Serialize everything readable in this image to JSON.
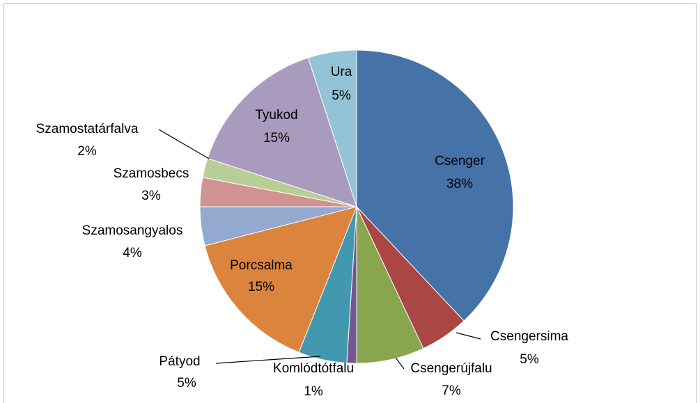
{
  "chart_data": {
    "type": "pie",
    "categories": [
      "Csenger",
      "Csengersima",
      "Csengerújfalu",
      "Komlódtótfalu",
      "Pátyod",
      "Porcsalma",
      "Szamosangyalos",
      "Szamosbecs",
      "Szamostatárfalva",
      "Tyukod",
      "Ura"
    ],
    "values": [
      38,
      5,
      7,
      1,
      5,
      15,
      4,
      3,
      2,
      15,
      5
    ],
    "value_labels": [
      "38%",
      "5%",
      "7%",
      "1%",
      "5%",
      "15%",
      "4%",
      "3%",
      "2%",
      "15%",
      "5%"
    ],
    "colors": [
      "#4572a7",
      "#aa4643",
      "#89a54e",
      "#71588f",
      "#4198af",
      "#db843d",
      "#93a9cf",
      "#d19392",
      "#b9cd96",
      "#a99bbd",
      "#93c3d6"
    ]
  }
}
